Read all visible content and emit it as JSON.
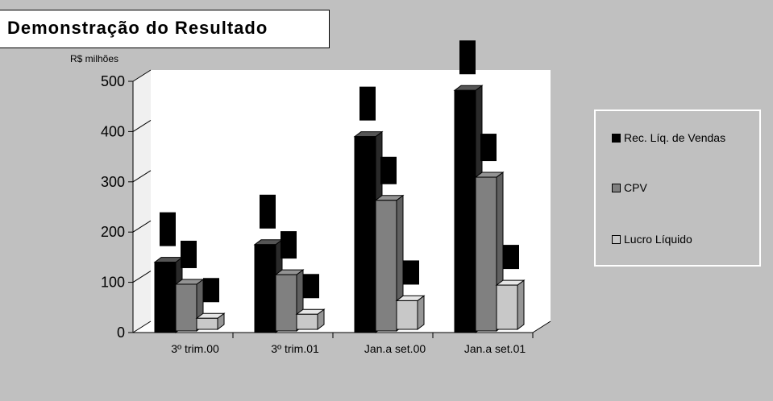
{
  "title": "Demonstração do Resultado",
  "chart_data": {
    "type": "bar",
    "subtype": "3d-clustered-column",
    "unit_label": "R$ milhões",
    "categories": [
      "3º trim.00",
      "3º trim.01",
      "Jan.a set.00",
      "Jan.a set.01"
    ],
    "series": [
      {
        "name": "Rec. Líq. de Vendas",
        "color": "#000000",
        "values": [
          140,
          175,
          390,
          482
        ]
      },
      {
        "name": "CPV",
        "color": "#808080",
        "values": [
          93,
          112,
          260,
          306
        ]
      },
      {
        "name": "Lucro Líquido",
        "color": "#c8c8c8",
        "values": [
          22,
          30,
          57,
          88
        ]
      }
    ],
    "ylim": [
      0,
      500
    ],
    "yticks": [
      "0",
      "100",
      "200",
      "300",
      "400",
      "500"
    ],
    "legend_position": "right",
    "grid": false
  }
}
